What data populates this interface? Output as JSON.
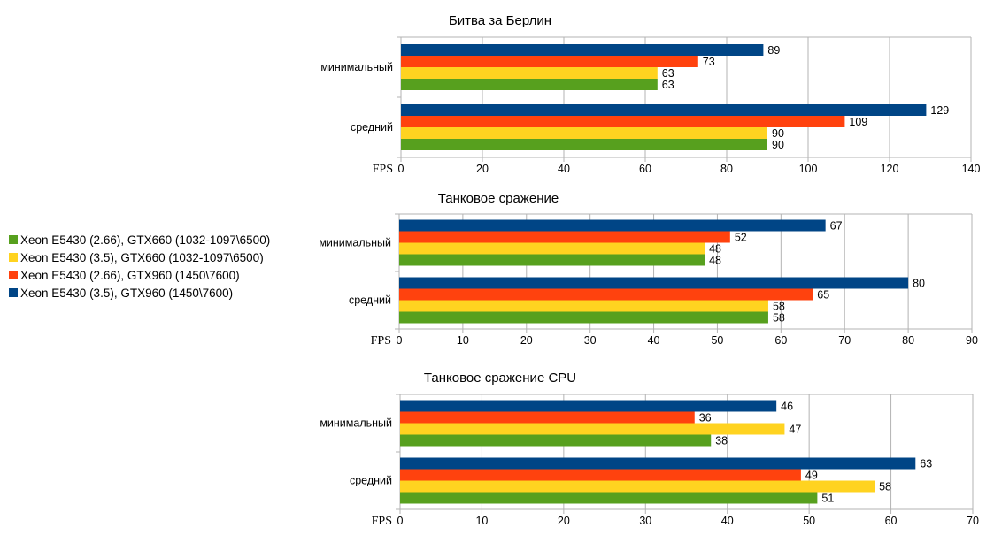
{
  "legend": [
    {
      "label": "Xeon E5430 (2.66), GTX660 (1032-1097\\6500)",
      "color": "#57a01e"
    },
    {
      "label": "Xeon E5430 (3.5), GTX660 (1032-1097\\6500)",
      "color": "#ffd320"
    },
    {
      "label": "Xeon E5430 (2.66), GTX960 (1450\\7600)",
      "color": "#ff420e"
    },
    {
      "label": "Xeon E5430 (3.5), GTX960 (1450\\7600)",
      "color": "#004586"
    }
  ],
  "chart_data": [
    {
      "type": "bar",
      "orientation": "horizontal",
      "title": "Битва за Берлин",
      "xlabel": "FPS",
      "categories": [
        "минимальный",
        "средний"
      ],
      "xlim": [
        0,
        140
      ],
      "xticks": [
        0,
        20,
        40,
        60,
        80,
        100,
        120,
        140
      ],
      "grid": true,
      "series": [
        {
          "name": "Xeon E5430 (2.66), GTX660 (1032-1097\\6500)",
          "values": [
            63,
            90
          ]
        },
        {
          "name": "Xeon E5430 (3.5), GTX660 (1032-1097\\6500)",
          "values": [
            63,
            90
          ]
        },
        {
          "name": "Xeon E5430 (2.66), GTX960 (1450\\7600)",
          "values": [
            73,
            109
          ]
        },
        {
          "name": "Xeon E5430 (3.5), GTX960 (1450\\7600)",
          "values": [
            89,
            129
          ]
        }
      ]
    },
    {
      "type": "bar",
      "orientation": "horizontal",
      "title": "Танковое сражение",
      "xlabel": "FPS",
      "categories": [
        "минимальный",
        "средний"
      ],
      "xlim": [
        0,
        90
      ],
      "xticks": [
        0,
        10,
        20,
        30,
        40,
        50,
        60,
        70,
        80,
        90
      ],
      "grid": true,
      "series": [
        {
          "name": "Xeon E5430 (2.66), GTX660 (1032-1097\\6500)",
          "values": [
            48,
            58
          ]
        },
        {
          "name": "Xeon E5430 (3.5), GTX660 (1032-1097\\6500)",
          "values": [
            48,
            58
          ]
        },
        {
          "name": "Xeon E5430 (2.66), GTX960 (1450\\7600)",
          "values": [
            52,
            65
          ]
        },
        {
          "name": "Xeon E5430 (3.5), GTX960 (1450\\7600)",
          "values": [
            67,
            80
          ]
        }
      ]
    },
    {
      "type": "bar",
      "orientation": "horizontal",
      "title": "Танковое сражение CPU",
      "xlabel": "FPS",
      "categories": [
        "минимальный",
        "средний"
      ],
      "xlim": [
        0,
        70
      ],
      "xticks": [
        0,
        10,
        20,
        30,
        40,
        50,
        60,
        70
      ],
      "grid": true,
      "series": [
        {
          "name": "Xeon E5430 (2.66), GTX660 (1032-1097\\6500)",
          "values": [
            38,
            51
          ]
        },
        {
          "name": "Xeon E5430 (3.5), GTX660 (1032-1097\\6500)",
          "values": [
            47,
            58
          ]
        },
        {
          "name": "Xeon E5430 (2.66), GTX960 (1450\\7600)",
          "values": [
            36,
            49
          ]
        },
        {
          "name": "Xeon E5430 (3.5), GTX960 (1450\\7600)",
          "values": [
            46,
            63
          ]
        }
      ]
    }
  ]
}
